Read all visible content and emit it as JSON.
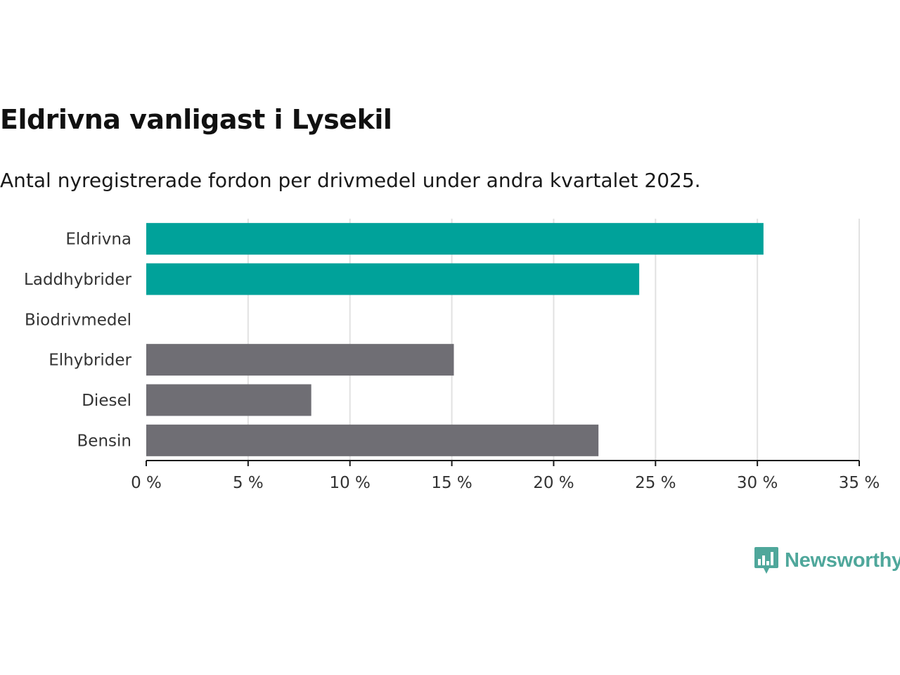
{
  "header": {
    "title": "Eldrivna vanligast i Lysekil",
    "subtitle": "Antal nyregistrerade fordon per drivmedel under andra kvartalet 2025."
  },
  "logo": {
    "text": "Newsworthy",
    "icon": "newsworthy-chart-bubble-icon",
    "color": "#4fa79b"
  },
  "chart_data": {
    "type": "bar",
    "orientation": "horizontal",
    "categories": [
      "Eldrivna",
      "Laddhybrider",
      "Biodrivmedel",
      "Elhybrider",
      "Diesel",
      "Bensin"
    ],
    "values": [
      30.3,
      24.2,
      0,
      15.1,
      8.1,
      22.2
    ],
    "colors": [
      "#00a29a",
      "#00a29a",
      "#6f6e74",
      "#6f6e74",
      "#6f6e74",
      "#6f6e74"
    ],
    "xlim": [
      0,
      35
    ],
    "ticks": [
      0,
      5,
      10,
      15,
      20,
      25,
      30,
      35
    ],
    "tick_labels": [
      "0 %",
      "5 %",
      "10 %",
      "15 %",
      "20 %",
      "25 %",
      "30 %",
      "35 %"
    ],
    "grid": true
  }
}
